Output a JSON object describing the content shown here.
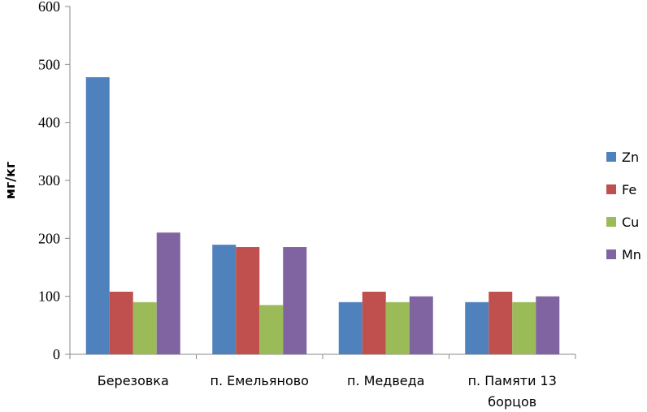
{
  "chart_data": {
    "type": "bar",
    "title": "",
    "xlabel": "",
    "ylabel": "мг/кг",
    "ylim": [
      0,
      600
    ],
    "yticks": [
      0,
      100,
      200,
      300,
      400,
      500,
      600
    ],
    "categories": [
      "Березовка",
      "п. Емельяново",
      "п. Медведа",
      "п. Памяти 13 борцов"
    ],
    "category_lines": [
      [
        "Березовка"
      ],
      [
        "п. Емельяново"
      ],
      [
        "п. Медведа"
      ],
      [
        "п. Памяти 13",
        "борцов"
      ]
    ],
    "series": [
      {
        "name": "Zn",
        "color": "#4F81BD",
        "values": [
          478,
          189,
          90,
          90
        ]
      },
      {
        "name": "Fe",
        "color": "#C0504D",
        "values": [
          108,
          185,
          108,
          108
        ]
      },
      {
        "name": "Cu",
        "color": "#9BBB59",
        "values": [
          90,
          85,
          90,
          90
        ]
      },
      {
        "name": "Mn",
        "color": "#8064A2",
        "values": [
          210,
          185,
          100,
          100
        ]
      }
    ],
    "grid": false,
    "legend_position": "right"
  }
}
